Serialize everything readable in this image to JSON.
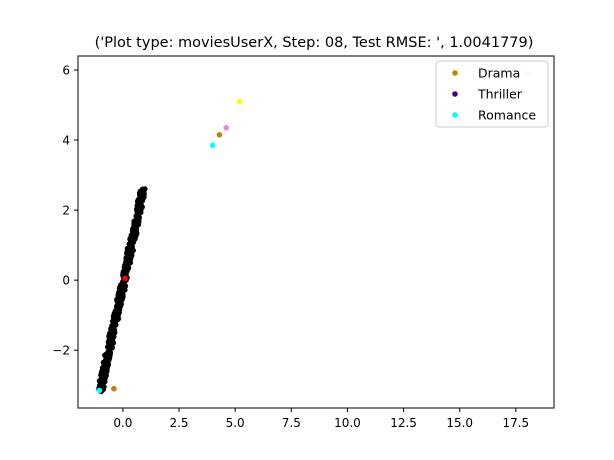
{
  "chart_data": {
    "type": "scatter",
    "title": "('Plot type: moviesUserX, Step: 08, Test RMSE: ', 1.0041779)",
    "xlabel": "",
    "ylabel": "",
    "xlim": [
      -2.0,
      19.2
    ],
    "ylim": [
      -3.65,
      6.4
    ],
    "x_ticks": [
      0.0,
      2.5,
      5.0,
      7.5,
      10.0,
      12.5,
      15.0,
      17.5
    ],
    "x_tick_labels": [
      "0.0",
      "2.5",
      "5.0",
      "7.5",
      "10.0",
      "12.5",
      "15.0",
      "17.5"
    ],
    "y_ticks": [
      -2,
      0,
      2,
      4,
      6
    ],
    "y_tick_labels": [
      "−2",
      "0",
      "2",
      "4",
      "6"
    ],
    "grid": false,
    "legend_position": "top-right",
    "legend": [
      {
        "label": "Drama",
        "color": "#b8860b"
      },
      {
        "label": "Thriller",
        "color": "#4b0082"
      },
      {
        "label": "Romance",
        "color": "#00ffff"
      }
    ],
    "cluster": {
      "color": "#000000",
      "center_line": {
        "from": [
          -1.0,
          -3.15
        ],
        "to": [
          0.9,
          2.6
        ]
      },
      "spread": 0.12
    },
    "points": [
      {
        "x": 4.3,
        "y": 4.15,
        "color": "#b8860b"
      },
      {
        "x": 4.6,
        "y": 4.35,
        "color": "#ee82ee"
      },
      {
        "x": 5.2,
        "y": 5.1,
        "color": "#ffff00"
      },
      {
        "x": 4.0,
        "y": 3.85,
        "color": "#00ffff"
      },
      {
        "x": 18.0,
        "y": 5.9,
        "color": "#ffdab9"
      },
      {
        "x": -0.4,
        "y": -3.1,
        "color": "#b8860b"
      },
      {
        "x": -1.05,
        "y": -3.15,
        "color": "#00ffff"
      },
      {
        "x": 0.1,
        "y": 0.05,
        "color": "#ff0000"
      }
    ]
  }
}
